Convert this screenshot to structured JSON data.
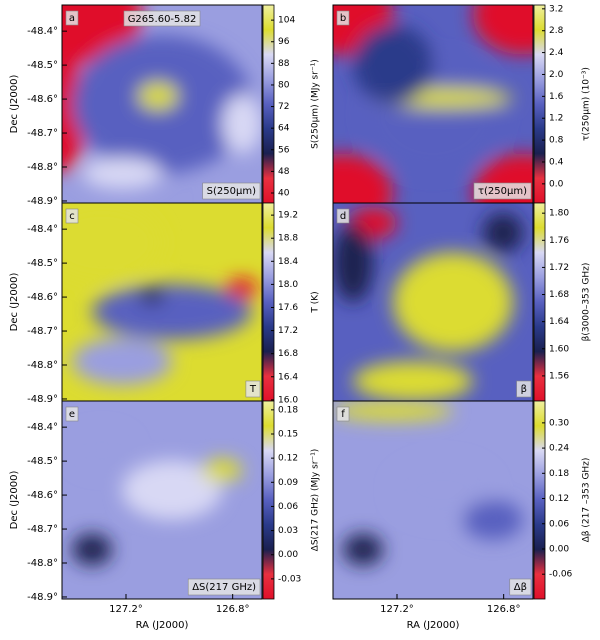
{
  "colormap": [
    "#e0102a",
    "#e83040",
    "#1a2050",
    "#2a3a8a",
    "#5860c0",
    "#9a9ee0",
    "#d8d8f4",
    "#dcdc30",
    "#f0f0a0"
  ],
  "chart_data": [
    {
      "type": "heatmap",
      "panel_label": "a",
      "title": "G265.60-5.82",
      "map_label": "S(250μm)",
      "colorbar_label": "S(250μm) (MJy sr⁻¹)",
      "ylabel": "Dec (J2000)",
      "ylim": [
        -48.906,
        -48.323
      ],
      "yticks": [
        {
          "value": -48.4,
          "label": "-48.4°"
        },
        {
          "value": -48.5,
          "label": "-48.5°"
        },
        {
          "value": -48.6,
          "label": "-48.6°"
        },
        {
          "value": -48.7,
          "label": "-48.7°"
        },
        {
          "value": -48.8,
          "label": "-48.8°"
        },
        {
          "value": -48.9,
          "label": "-48.9°"
        }
      ],
      "colorbar_lim": [
        36.3,
        109.6
      ],
      "colorbar_ticks": [
        40,
        48,
        56,
        64,
        72,
        80,
        88,
        96,
        104
      ]
    },
    {
      "type": "heatmap",
      "panel_label": "b",
      "map_label": "τ(250μm)",
      "colorbar_label": "τ(250μm) (10⁻³)",
      "colorbar_lim": [
        -0.35,
        3.27
      ],
      "colorbar_ticks": [
        {
          "value": 0,
          "label": "0.0"
        },
        0.4,
        0.8,
        1.2,
        1.6,
        {
          "value": 2,
          "label": "2.0"
        },
        2.4,
        2.8,
        3.2
      ]
    },
    {
      "type": "heatmap",
      "panel_label": "c",
      "map_label": "T",
      "colorbar_label": "T (K)",
      "ylabel": "Dec (J2000)",
      "ylim": [
        -48.906,
        -48.323
      ],
      "yticks": [
        {
          "value": -48.4,
          "label": "-48.4°"
        },
        {
          "value": -48.5,
          "label": "-48.5°"
        },
        {
          "value": -48.6,
          "label": "-48.6°"
        },
        {
          "value": -48.7,
          "label": "-48.7°"
        },
        {
          "value": -48.8,
          "label": "-48.8°"
        },
        {
          "value": -48.9,
          "label": "-48.9°"
        }
      ],
      "colorbar_lim": [
        15.98,
        19.41
      ],
      "colorbar_ticks": [
        {
          "value": 16,
          "label": "16.0"
        },
        16.4,
        16.8,
        17.2,
        17.6,
        {
          "value": 18,
          "label": "18.0"
        },
        18.4,
        18.8,
        19.2
      ]
    },
    {
      "type": "heatmap",
      "panel_label": "d",
      "map_label": "β",
      "colorbar_label": "β(3000–353 GHz)",
      "colorbar_lim": [
        1.523,
        1.815
      ],
      "colorbar_ticks": [
        1.56,
        {
          "value": 1.6,
          "label": "1.60"
        },
        1.64,
        1.68,
        1.72,
        1.76,
        {
          "value": 1.8,
          "label": "1.80"
        }
      ]
    },
    {
      "type": "heatmap",
      "panel_label": "e",
      "map_label": "ΔS(217 GHz)",
      "colorbar_label": "ΔS(217 GHz) (MJy sr⁻¹)",
      "ylabel": "Dec (J2000)",
      "xlabel": "RA (J2000)",
      "ylim": [
        -48.906,
        -48.323
      ],
      "yticks": [
        {
          "value": -48.4,
          "label": "-48.4°"
        },
        {
          "value": -48.5,
          "label": "-48.5°"
        },
        {
          "value": -48.6,
          "label": "-48.6°"
        },
        {
          "value": -48.7,
          "label": "-48.7°"
        },
        {
          "value": -48.8,
          "label": "-48.8°"
        },
        {
          "value": -48.9,
          "label": "-48.9°"
        }
      ],
      "xlim": [
        127.44,
        126.69
      ],
      "xticks": [
        {
          "value": 127.2,
          "label": "127.2°"
        },
        {
          "value": 126.8,
          "label": "126.8°"
        }
      ],
      "colorbar_lim": [
        -0.055,
        0.191
      ],
      "colorbar_ticks": [
        -0.03,
        {
          "value": 0,
          "label": "0.00"
        },
        0.03,
        0.06,
        0.09,
        0.12,
        0.15,
        0.18
      ]
    },
    {
      "type": "heatmap",
      "panel_label": "f",
      "map_label": "Δβ",
      "colorbar_label": "Δβ (217 –353 GHz)",
      "xlabel": "RA (J2000)",
      "xlim": [
        127.44,
        126.69
      ],
      "xticks": [
        {
          "value": 127.2,
          "label": "127.2°"
        },
        {
          "value": 126.8,
          "label": "126.8°"
        }
      ],
      "colorbar_lim": [
        -0.119,
        0.352
      ],
      "colorbar_ticks": [
        -0.06,
        {
          "value": 0,
          "label": "0.00"
        },
        0.06,
        0.12,
        0.18,
        0.24,
        {
          "value": 0.3,
          "label": "0.30"
        }
      ]
    }
  ]
}
